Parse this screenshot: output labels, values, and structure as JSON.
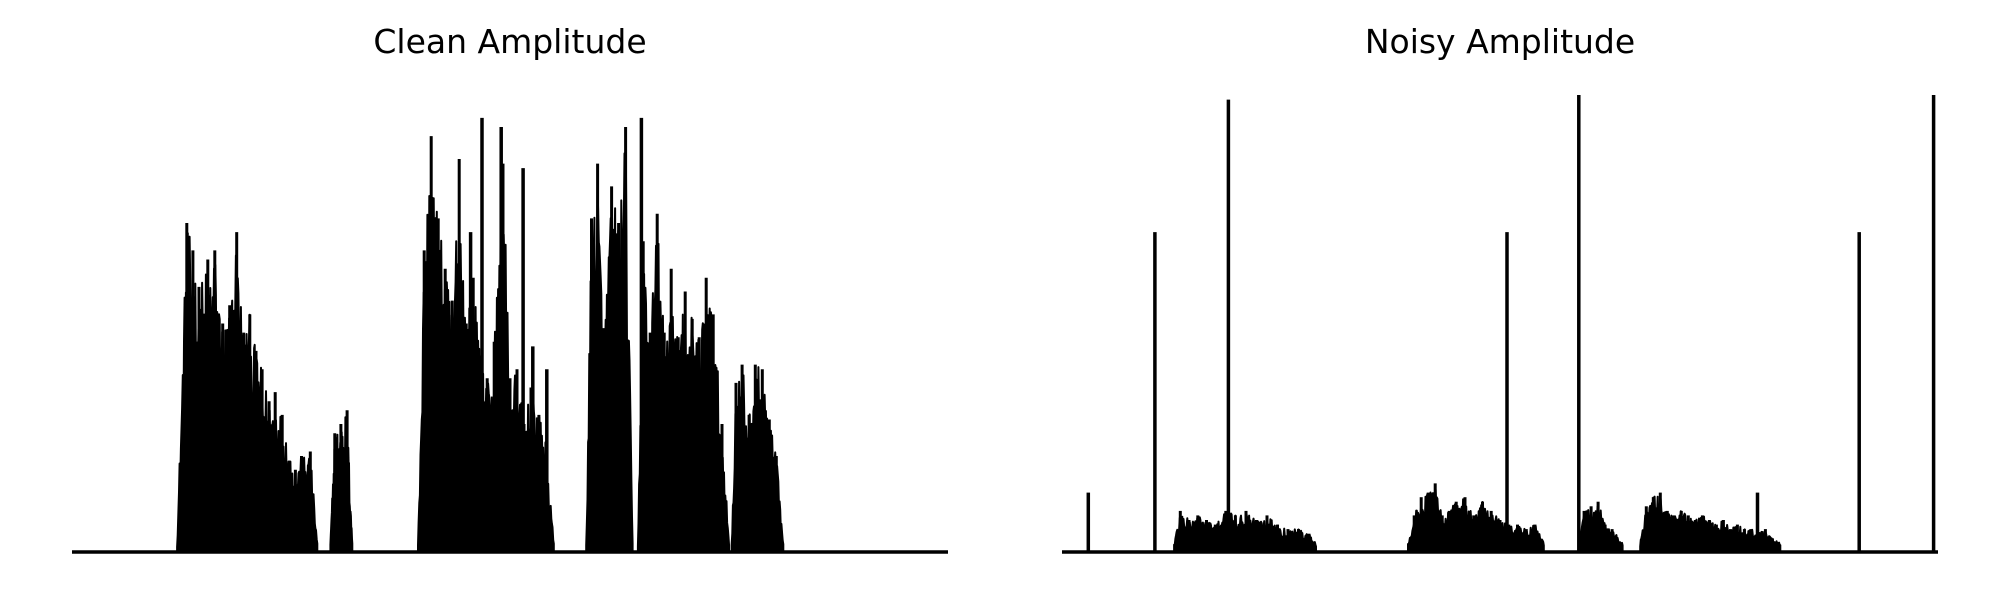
{
  "chart_data": [
    {
      "type": "area",
      "title": "Clean Amplitude",
      "xlabel": "",
      "ylabel": "",
      "axes_visible": false,
      "grid": false,
      "color": "#000000",
      "xlim": [
        0,
        1
      ],
      "ylim": [
        0,
        1
      ],
      "bursts": [
        {
          "x": [
            0.12,
            0.28
          ],
          "peaks": [
            [
              0.131,
              0.72
            ],
            [
              0.138,
              0.66
            ],
            [
              0.145,
              0.58
            ],
            [
              0.155,
              0.64
            ],
            [
              0.163,
              0.66
            ],
            [
              0.172,
              0.5
            ],
            [
              0.18,
              0.54
            ],
            [
              0.188,
              0.7
            ],
            [
              0.196,
              0.48
            ],
            [
              0.203,
              0.52
            ],
            [
              0.21,
              0.44
            ],
            [
              0.217,
              0.4
            ],
            [
              0.225,
              0.33
            ],
            [
              0.232,
              0.35
            ],
            [
              0.24,
              0.3
            ],
            [
              0.255,
              0.18
            ],
            [
              0.262,
              0.21
            ],
            [
              0.272,
              0.22
            ]
          ]
        },
        {
          "x": [
            0.295,
            0.32
          ],
          "peaks": [
            [
              0.3,
              0.26
            ],
            [
              0.307,
              0.28
            ],
            [
              0.314,
              0.31
            ]
          ]
        },
        {
          "x": [
            0.395,
            0.55
          ],
          "peaks": [
            [
              0.402,
              0.66
            ],
            [
              0.41,
              0.91
            ],
            [
              0.418,
              0.73
            ],
            [
              0.426,
              0.62
            ],
            [
              0.434,
              0.55
            ],
            [
              0.442,
              0.86
            ],
            [
              0.45,
              0.5
            ],
            [
              0.458,
              0.6
            ],
            [
              0.466,
              0.43
            ],
            [
              0.474,
              0.38
            ],
            [
              0.482,
              0.46
            ],
            [
              0.492,
              0.85
            ],
            [
              0.5,
              0.38
            ],
            [
              0.508,
              0.4
            ],
            [
              0.516,
              0.28
            ],
            [
              0.524,
              0.36
            ],
            [
              0.533,
              0.3
            ],
            [
              0.541,
              0.24
            ]
          ]
        },
        {
          "x": [
            0.587,
            0.64
          ],
          "peaks": [
            [
              0.593,
              0.73
            ],
            [
              0.6,
              0.85
            ],
            [
              0.607,
              0.49
            ],
            [
              0.616,
              0.8
            ],
            [
              0.624,
              0.72
            ],
            [
              0.632,
              0.93
            ]
          ]
        },
        {
          "x": [
            0.646,
            0.75
          ],
          "peaks": [
            [
              0.652,
              0.68
            ],
            [
              0.66,
              0.48
            ],
            [
              0.668,
              0.74
            ],
            [
              0.676,
              0.48
            ],
            [
              0.684,
              0.62
            ],
            [
              0.692,
              0.47
            ],
            [
              0.7,
              0.57
            ],
            [
              0.708,
              0.51
            ],
            [
              0.716,
              0.47
            ],
            [
              0.724,
              0.6
            ],
            [
              0.732,
              0.52
            ],
            [
              0.742,
              0.28
            ]
          ]
        },
        {
          "x": [
            0.753,
            0.812
          ],
          "peaks": [
            [
              0.758,
              0.37
            ],
            [
              0.765,
              0.41
            ],
            [
              0.773,
              0.3
            ],
            [
              0.78,
              0.41
            ],
            [
              0.788,
              0.4
            ],
            [
              0.796,
              0.29
            ],
            [
              0.804,
              0.21
            ]
          ]
        }
      ],
      "spikes": [
        [
          0.455,
          0.7
        ],
        [
          0.468,
          0.95
        ],
        [
          0.49,
          0.93
        ],
        [
          0.515,
          0.84
        ],
        [
          0.526,
          0.45
        ],
        [
          0.542,
          0.4
        ],
        [
          0.65,
          0.95
        ]
      ]
    },
    {
      "type": "area",
      "title": "Noisy Amplitude",
      "xlabel": "",
      "ylabel": "",
      "axes_visible": false,
      "grid": false,
      "color": "#000000",
      "xlim": [
        0,
        1
      ],
      "ylim": [
        0,
        1
      ],
      "bursts": [
        {
          "x": [
            0.128,
            0.29
          ],
          "peaks": [
            [
              0.135,
              0.09
            ],
            [
              0.145,
              0.07
            ],
            [
              0.155,
              0.08
            ],
            [
              0.165,
              0.07
            ],
            [
              0.175,
              0.06
            ],
            [
              0.187,
              0.09
            ],
            [
              0.198,
              0.08
            ],
            [
              0.21,
              0.09
            ],
            [
              0.222,
              0.07
            ],
            [
              0.234,
              0.08
            ],
            [
              0.246,
              0.06
            ],
            [
              0.258,
              0.05
            ],
            [
              0.27,
              0.05
            ],
            [
              0.282,
              0.04
            ]
          ]
        },
        {
          "x": [
            0.395,
            0.55
          ],
          "peaks": [
            [
              0.402,
              0.08
            ],
            [
              0.41,
              0.12
            ],
            [
              0.418,
              0.13
            ],
            [
              0.426,
              0.15
            ],
            [
              0.434,
              0.08
            ],
            [
              0.442,
              0.09
            ],
            [
              0.45,
              0.11
            ],
            [
              0.46,
              0.12
            ],
            [
              0.47,
              0.08
            ],
            [
              0.48,
              0.11
            ],
            [
              0.49,
              0.09
            ],
            [
              0.5,
              0.07
            ],
            [
              0.51,
              0.06
            ],
            [
              0.52,
              0.06
            ],
            [
              0.53,
              0.05
            ],
            [
              0.54,
              0.06
            ]
          ]
        },
        {
          "x": [
            0.59,
            0.64
          ],
          "peaks": [
            [
              0.596,
              0.09
            ],
            [
              0.604,
              0.1
            ],
            [
              0.612,
              0.11
            ],
            [
              0.62,
              0.06
            ],
            [
              0.628,
              0.05
            ]
          ]
        },
        {
          "x": [
            0.66,
            0.82
          ],
          "peaks": [
            [
              0.667,
              0.1
            ],
            [
              0.675,
              0.12
            ],
            [
              0.683,
              0.13
            ],
            [
              0.691,
              0.09
            ],
            [
              0.699,
              0.08
            ],
            [
              0.707,
              0.09
            ],
            [
              0.715,
              0.08
            ],
            [
              0.723,
              0.07
            ],
            [
              0.731,
              0.08
            ],
            [
              0.739,
              0.07
            ],
            [
              0.747,
              0.06
            ],
            [
              0.755,
              0.07
            ],
            [
              0.763,
              0.05
            ],
            [
              0.771,
              0.06
            ],
            [
              0.779,
              0.05
            ],
            [
              0.787,
              0.05
            ],
            [
              0.795,
              0.04
            ],
            [
              0.803,
              0.05
            ],
            [
              0.811,
              0.03
            ]
          ]
        }
      ],
      "spikes": [
        [
          0.03,
          0.13
        ],
        [
          0.106,
          0.7
        ],
        [
          0.19,
          0.99
        ],
        [
          0.508,
          0.7
        ],
        [
          0.59,
          1.0
        ],
        [
          0.794,
          0.13
        ],
        [
          0.91,
          0.7
        ],
        [
          0.995,
          1.0
        ]
      ]
    }
  ]
}
